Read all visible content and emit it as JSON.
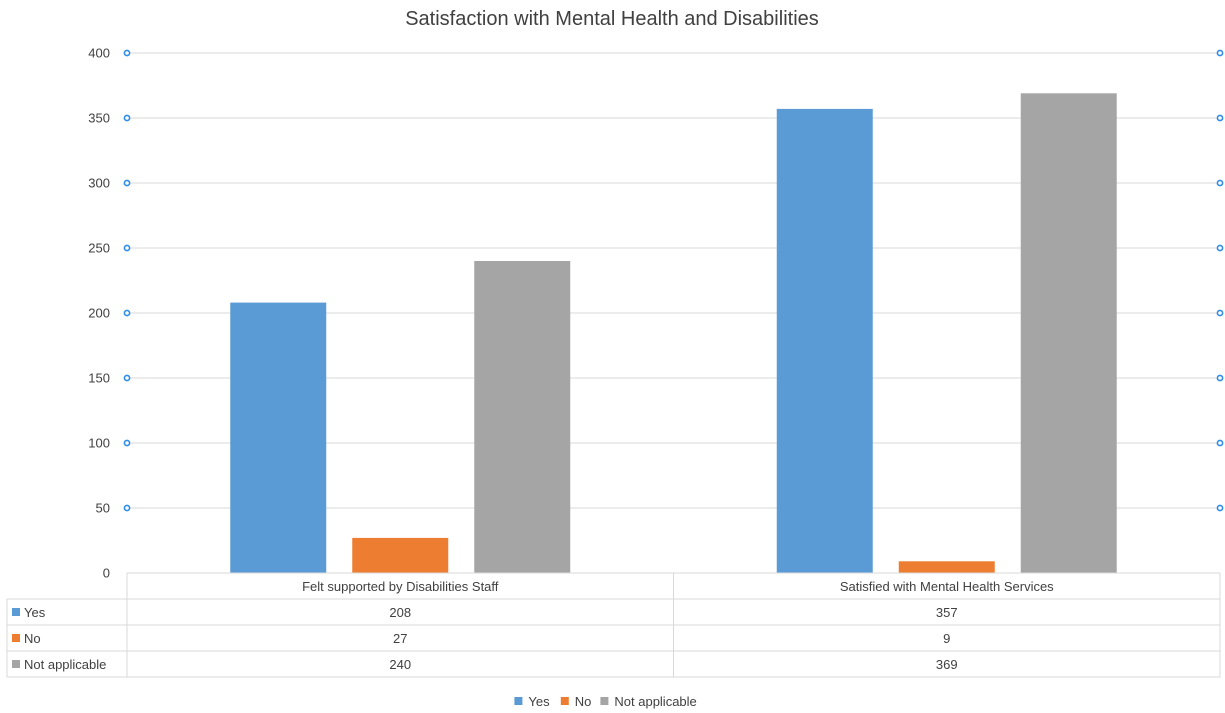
{
  "chart_data": {
    "type": "bar",
    "title": "Satisfaction with Mental Health and Disabilities",
    "xlabel": "",
    "ylabel": "",
    "ylim": [
      0,
      400
    ],
    "yticks": [
      0,
      50,
      100,
      150,
      200,
      250,
      300,
      350,
      400
    ],
    "grid": true,
    "legend_position": "bottom",
    "categories": [
      "Felt supported by Disabilities Staff",
      "Satisfied with Mental Health Services"
    ],
    "series": [
      {
        "name": "Yes",
        "values": [
          208,
          357
        ],
        "color": "#5b9bd5"
      },
      {
        "name": "No",
        "values": [
          27,
          9
        ],
        "color": "#ed7d31"
      },
      {
        "name": "Not applicable",
        "values": [
          240,
          369
        ],
        "color": "#a5a5a5"
      }
    ],
    "data_table": true
  }
}
